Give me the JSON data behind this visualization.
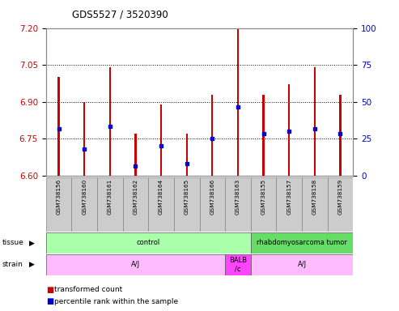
{
  "title": "GDS5527 / 3520390",
  "samples": [
    "GSM738156",
    "GSM738160",
    "GSM738161",
    "GSM738162",
    "GSM738164",
    "GSM738165",
    "GSM738166",
    "GSM738163",
    "GSM738155",
    "GSM738157",
    "GSM738158",
    "GSM738159"
  ],
  "bar_bottoms": [
    6.6,
    6.6,
    6.6,
    6.6,
    6.6,
    6.6,
    6.6,
    6.6,
    6.6,
    6.6,
    6.6,
    6.6
  ],
  "bar_tops": [
    7.0,
    6.9,
    7.04,
    6.77,
    6.89,
    6.77,
    6.93,
    7.2,
    6.93,
    6.97,
    7.04,
    6.93
  ],
  "blue_markers": [
    6.79,
    6.71,
    6.8,
    6.64,
    6.72,
    6.65,
    6.75,
    6.88,
    6.77,
    6.78,
    6.79,
    6.77
  ],
  "ylim_left": [
    6.6,
    7.2
  ],
  "ylim_right": [
    0,
    100
  ],
  "left_yticks": [
    6.6,
    6.75,
    6.9,
    7.05,
    7.2
  ],
  "right_yticks": [
    0,
    25,
    50,
    75,
    100
  ],
  "dotted_lines": [
    6.75,
    6.9,
    7.05
  ],
  "bar_color": "#cc0000",
  "blue_color": "#0000cc",
  "tissue_labels": [
    {
      "text": "control",
      "start": 0,
      "end": 7,
      "color": "#aaffaa"
    },
    {
      "text": "rhabdomyosarcoma tumor",
      "start": 8,
      "end": 11,
      "color": "#66dd66"
    }
  ],
  "strain_labels": [
    {
      "text": "A/J",
      "start": 0,
      "end": 6,
      "color": "#ffbbff"
    },
    {
      "text": "BALB\n/c",
      "start": 7,
      "end": 7,
      "color": "#ff44ff"
    },
    {
      "text": "A/J",
      "start": 8,
      "end": 11,
      "color": "#ffbbff"
    }
  ],
  "legend_red": "transformed count",
  "legend_blue": "percentile rank within the sample",
  "bar_width": 0.07,
  "background_color": "#ffffff",
  "left_axis_color": "#cc0000",
  "right_axis_color": "#0000cc",
  "sample_box_color": "#cccccc",
  "sample_box_edge": "#888888"
}
